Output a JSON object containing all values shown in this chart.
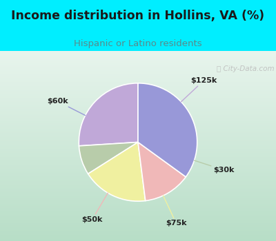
{
  "title": "Income distribution in Hollins, VA (%)",
  "subtitle": "Hispanic or Latino residents",
  "title_color": "#1a1a1a",
  "subtitle_color": "#5a8a8a",
  "background_cyan": "#00eeff",
  "background_chart_top": "#e8f0e8",
  "background_chart_bottom": "#c8e8d0",
  "labels": [
    "$125k",
    "$30k",
    "$75k",
    "$50k",
    "$60k"
  ],
  "sizes": [
    26,
    8,
    18,
    13,
    35
  ],
  "colors": [
    "#c0a8d8",
    "#b8ccaa",
    "#f0f0a0",
    "#f0b8b8",
    "#9898d8"
  ],
  "startangle": 90,
  "watermark": "City-Data.com"
}
